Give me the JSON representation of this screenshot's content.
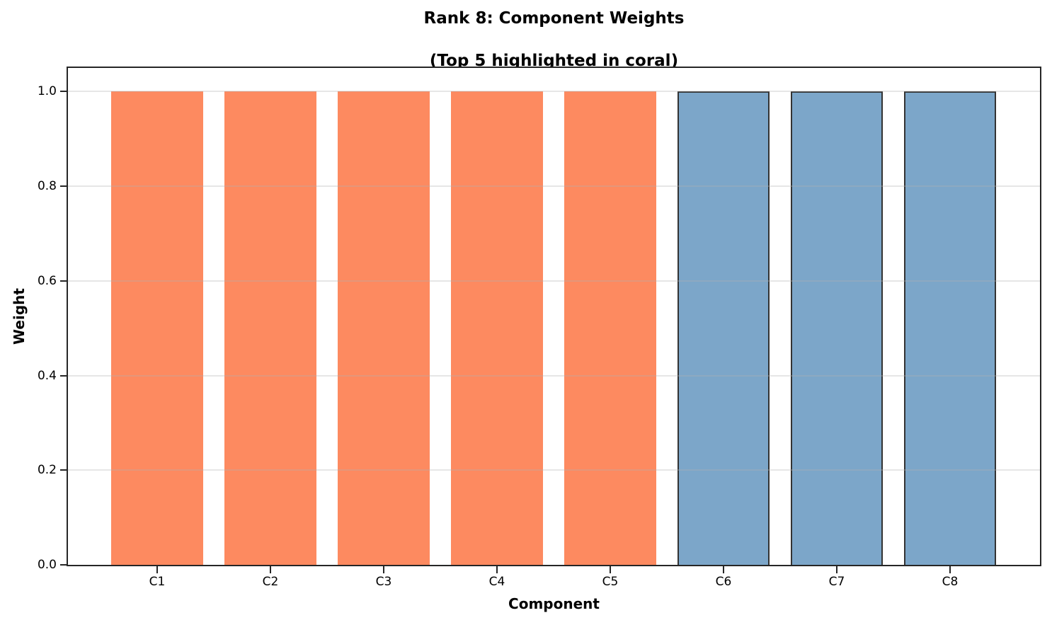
{
  "title": {
    "line1": "Rank 8: Component Weights",
    "line2": "(Top 5 highlighted in coral)"
  },
  "axes": {
    "x_label": "Component",
    "y_label": "Weight"
  },
  "chart_data": {
    "type": "bar",
    "title": "Rank 8: Component Weights\n(Top 5 highlighted in coral)",
    "xlabel": "Component",
    "ylabel": "Weight",
    "categories": [
      "C1",
      "C2",
      "C3",
      "C4",
      "C5",
      "C6",
      "C7",
      "C8"
    ],
    "values": [
      1.0,
      1.0,
      1.0,
      1.0,
      1.0,
      1.0,
      1.0,
      1.0
    ],
    "highlighted_categories": [
      "C1",
      "C2",
      "C3",
      "C4",
      "C5"
    ],
    "highlight_count": 5,
    "ylim": [
      0,
      1.05
    ],
    "y_ticks": [
      0.0,
      0.2,
      0.4,
      0.6,
      0.8,
      1.0
    ],
    "y_tick_labels": [
      "0.0",
      "0.2",
      "0.4",
      "0.6",
      "0.8",
      "1.0"
    ],
    "grid": {
      "axis": "y",
      "visible": true,
      "style": "solid",
      "drawn_over_bars": true
    },
    "legend": "none",
    "colors": {
      "highlight_fill": "#FD8A60",
      "other_fill": "#7CA6C9",
      "other_edge": "#333333",
      "grid_line": "#E7E7E7",
      "spine": "#262626",
      "background": "#FFFFFF",
      "text": "#000000"
    }
  }
}
